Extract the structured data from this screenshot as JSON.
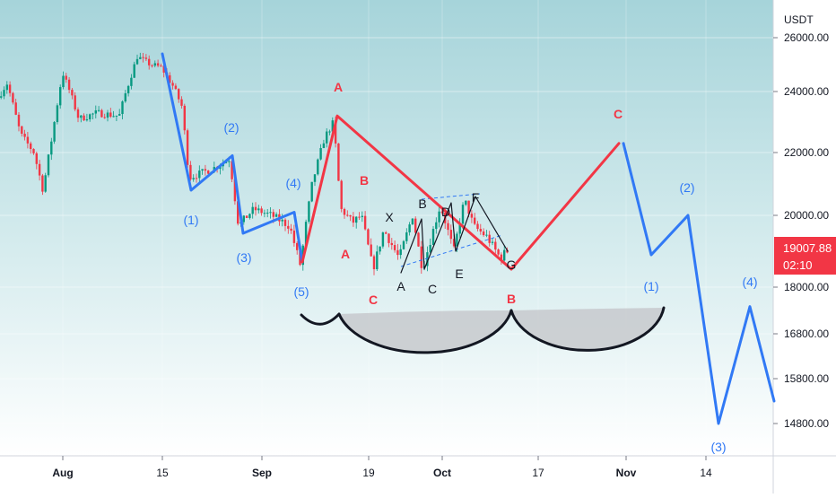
{
  "chart_data": {
    "type": "line",
    "currency": "USDT",
    "y_ticks": [
      {
        "label": "26000.00",
        "value": 26000
      },
      {
        "label": "24000.00",
        "value": 24000
      },
      {
        "label": "22000.00",
        "value": 22000
      },
      {
        "label": "20000.00",
        "value": 20000
      },
      {
        "label": "18000.00",
        "value": 18000
      },
      {
        "label": "16800.00",
        "value": 16800
      },
      {
        "label": "15800.00",
        "value": 15800
      },
      {
        "label": "14800.00",
        "value": 14800
      }
    ],
    "x_ticks": [
      "Aug",
      "15",
      "Sep",
      "19",
      "Oct",
      "17",
      "Nov",
      "14"
    ],
    "last_price": {
      "price": "19007.88",
      "countdown": "02:10",
      "color": "#f23645"
    },
    "colors": {
      "blue_wave": "#3179f5",
      "red_wave": "#f23645",
      "black_wave": "#131722",
      "bg_top": "#a6d4da",
      "bg_bottom": "#ffffff"
    },
    "series": [
      {
        "role": "blue-impulse-down",
        "values": [
          25400,
          20800,
          21900,
          19500,
          20100,
          18700
        ]
      },
      {
        "role": "red-abc-correction",
        "values": [
          18700,
          23200,
          18500,
          22300
        ]
      },
      {
        "role": "blue-projection-down",
        "values": [
          22300,
          18900,
          20000,
          14800,
          17500,
          15300
        ]
      },
      {
        "role": "black-triangle",
        "values": [
          18400,
          19900,
          18500,
          20400,
          19000,
          20600,
          19000
        ]
      }
    ],
    "wave_labels": [
      {
        "text": "(1)",
        "color": "blue"
      },
      {
        "text": "(2)",
        "color": "blue"
      },
      {
        "text": "(3)",
        "color": "blue"
      },
      {
        "text": "(4)",
        "color": "blue"
      },
      {
        "text": "(5)",
        "color": "blue"
      },
      {
        "text": "A",
        "color": "red"
      },
      {
        "text": "B",
        "color": "red"
      },
      {
        "text": "A",
        "color": "red"
      },
      {
        "text": "C",
        "color": "red"
      },
      {
        "text": "B",
        "color": "red"
      },
      {
        "text": "C",
        "color": "red"
      },
      {
        "text": "A",
        "color": "black"
      },
      {
        "text": "X",
        "color": "black"
      },
      {
        "text": "B",
        "color": "black"
      },
      {
        "text": "C",
        "color": "black"
      },
      {
        "text": "D",
        "color": "black"
      },
      {
        "text": "E",
        "color": "black"
      },
      {
        "text": "F",
        "color": "black"
      },
      {
        "text": "G",
        "color": "black"
      },
      {
        "text": "(1)",
        "color": "blue"
      },
      {
        "text": "(2)",
        "color": "blue"
      },
      {
        "text": "(3)",
        "color": "blue"
      },
      {
        "text": "(4)",
        "color": "blue"
      }
    ],
    "pattern": "cup-and-handle"
  }
}
